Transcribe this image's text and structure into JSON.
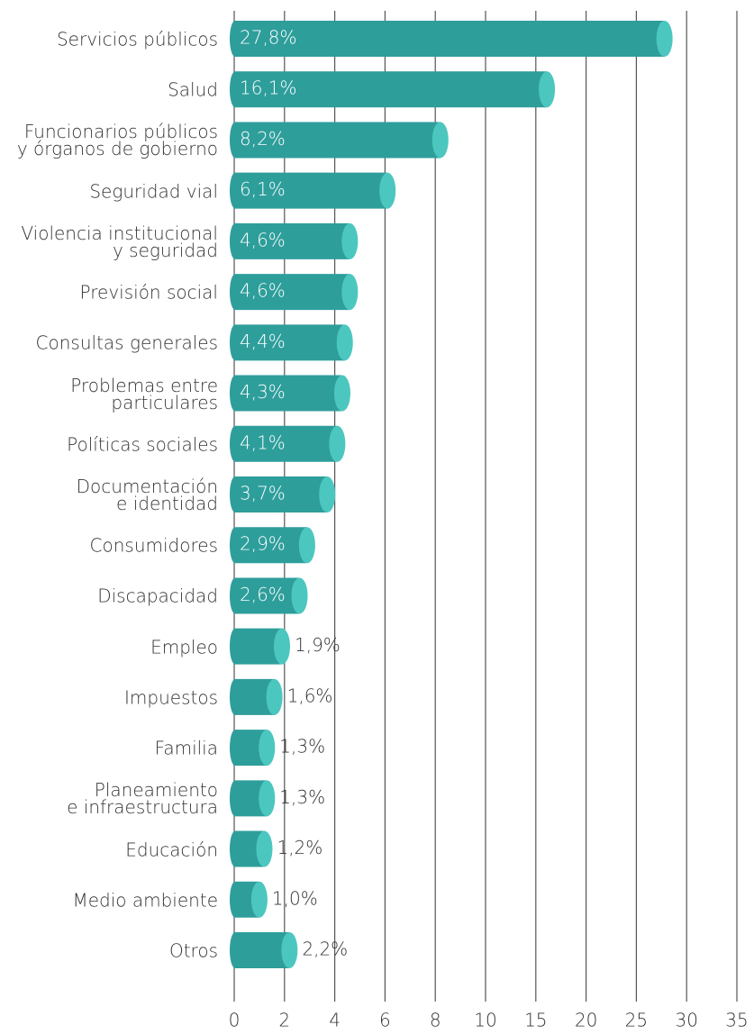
{
  "chart_data": {
    "type": "bar",
    "orientation": "horizontal",
    "categories": [
      "Servicios públicos",
      "Salud",
      "Funcionarios públicos\ny órganos de gobierno",
      "Seguridad vial",
      "Violencia institucional\ny seguridad",
      "Previsión social",
      "Consultas generales",
      "Problemas entre\nparticulares",
      "Políticas sociales",
      "Documentación\ne identidad",
      "Consumidores",
      "Discapacidad",
      "Empleo",
      "Impuestos",
      "Familia",
      "Planeamiento\ne infraestructura",
      "Educación",
      "Medio ambiente",
      "Otros"
    ],
    "values": [
      27.8,
      16.1,
      8.2,
      6.1,
      4.6,
      4.6,
      4.4,
      4.3,
      4.1,
      3.7,
      2.9,
      2.6,
      1.9,
      1.6,
      1.3,
      1.3,
      1.2,
      1.0,
      2.2
    ],
    "value_labels": [
      "27,8%",
      "16,1%",
      "8,2%",
      "6,1%",
      "4,6%",
      "4,6%",
      "4,4%",
      "4,3%",
      "4,1%",
      "3,7%",
      "2,9%",
      "2,6%",
      "1,9%",
      "1,6%",
      "1,3%",
      "1,3%",
      "1,2%",
      "1,0%",
      "2,2%"
    ],
    "color": "#2e9e9b",
    "cap_color": "#4cc7bf",
    "xlim": [
      0,
      35
    ],
    "xticks": [
      0,
      2,
      4,
      6,
      8,
      10,
      15,
      20,
      25,
      30,
      35
    ],
    "grid": true
  }
}
